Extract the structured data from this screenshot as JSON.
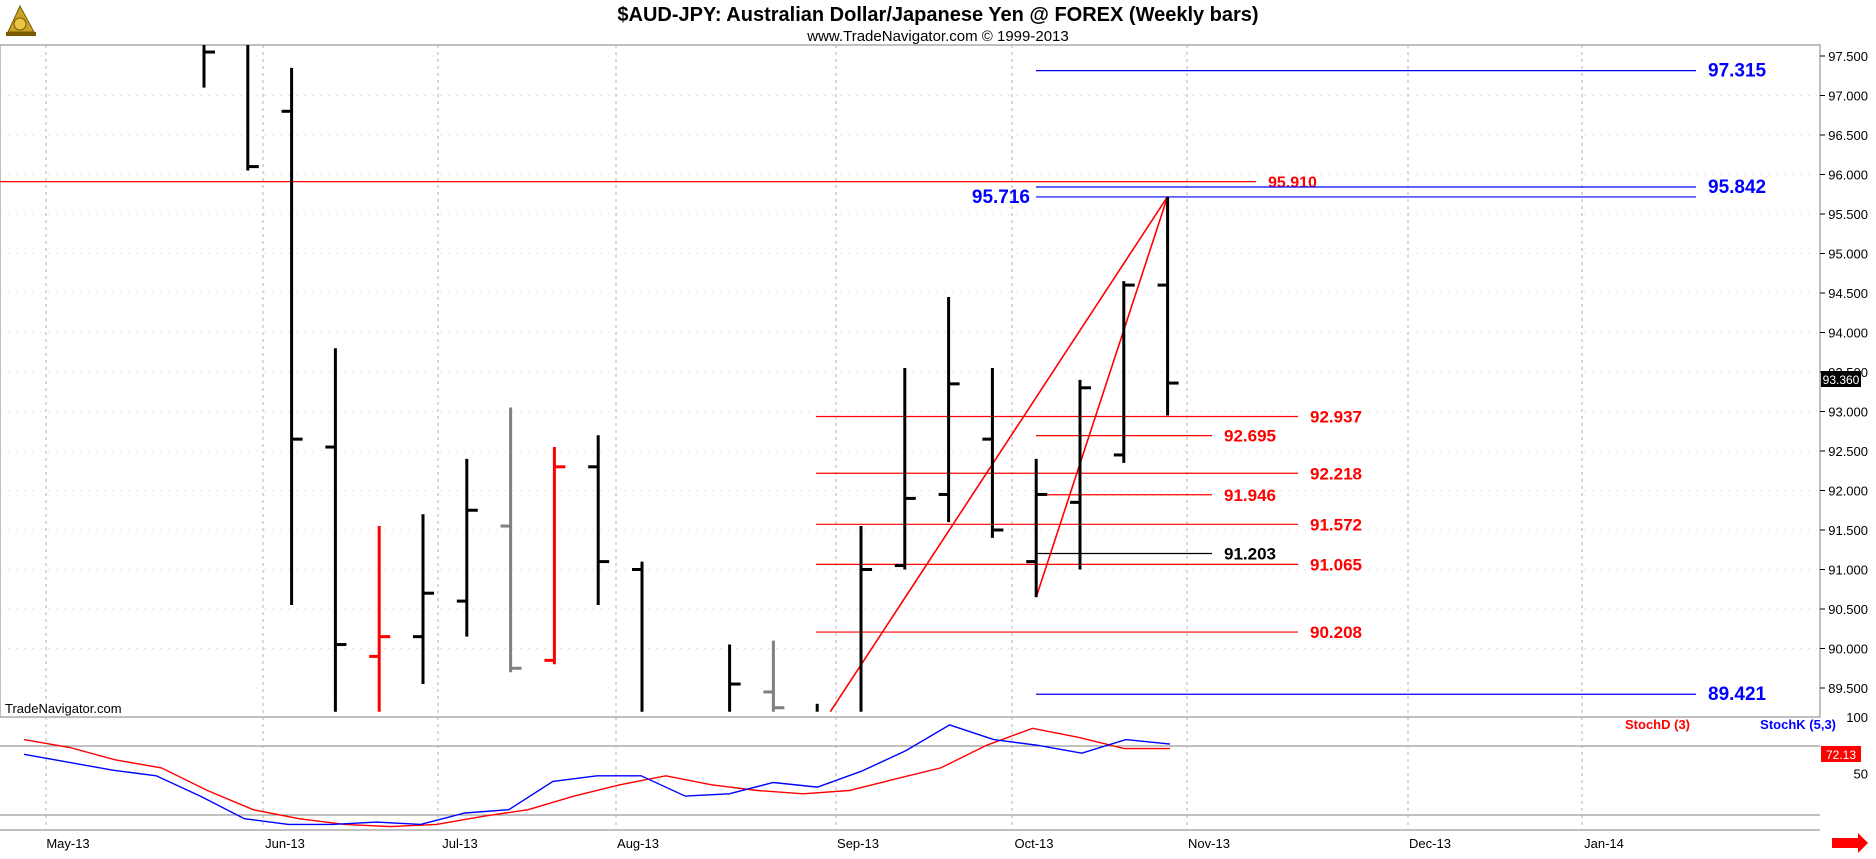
{
  "header": {
    "title": "$AUD-JPY:  Australian Dollar/Japanese Yen @ FOREX  (Weekly bars)",
    "subtitle": "www.TradeNavigator.com © 1999-2013",
    "watermark": "TradeNavigator.com",
    "logo_icon": "trade-navigator-logo-icon"
  },
  "colors": {
    "bar": "#000000",
    "bar_up_red": "#ff0000",
    "bar_gray": "#808080",
    "level_red": "#ff0000",
    "level_blue": "#0000ff",
    "level_black": "#000000",
    "stoch_d": "#ff0000",
    "stoch_k": "#0000ff",
    "grid": "#b0b0b0",
    "axis_label_bg": "#000000"
  },
  "chart_data": [
    {
      "type": "ohlc",
      "title": "$AUD-JPY:  Australian Dollar/Japanese Yen @ FOREX  (Weekly bars)",
      "ylim": [
        89.2,
        97.7
      ],
      "y_ticks": [
        "89.500",
        "90.000",
        "90.500",
        "91.000",
        "91.500",
        "92.000",
        "92.500",
        "93.000",
        "93.500",
        "94.000",
        "94.500",
        "95.000",
        "95.500",
        "96.000",
        "96.500",
        "97.000",
        "97.500"
      ],
      "x_ticks": [
        "May-13",
        "Jun-13",
        "Jul-13",
        "Aug-13",
        "Sep-13",
        "Oct-13",
        "Nov-13",
        "Dec-13",
        "Jan-14"
      ],
      "last_price_label": "93.360",
      "bars": [
        {
          "i": 0,
          "o": null,
          "h": 97.8,
          "l": 97.1,
          "c": 97.55,
          "color": "black"
        },
        {
          "i": 1,
          "o": null,
          "h": 97.8,
          "l": 96.05,
          "c": 96.1,
          "color": "black"
        },
        {
          "i": 2,
          "o": 96.8,
          "h": 97.35,
          "l": 90.55,
          "c": 92.65,
          "color": "black"
        },
        {
          "i": 3,
          "o": 92.55,
          "h": 93.8,
          "l": 89.2,
          "c": 90.05,
          "color": "black"
        },
        {
          "i": 4,
          "o": 89.9,
          "h": 91.55,
          "l": 89.2,
          "c": 90.15,
          "color": "red"
        },
        {
          "i": 5,
          "o": 90.15,
          "h": 91.7,
          "l": 89.55,
          "c": 90.7,
          "color": "black"
        },
        {
          "i": 6,
          "o": 90.6,
          "h": 92.4,
          "l": 90.15,
          "c": 91.75,
          "color": "black"
        },
        {
          "i": 7,
          "o": 91.55,
          "h": 93.05,
          "l": 89.7,
          "c": 89.75,
          "color": "gray"
        },
        {
          "i": 8,
          "o": 89.85,
          "h": 92.55,
          "l": 89.8,
          "c": 92.3,
          "color": "red"
        },
        {
          "i": 9,
          "o": 92.3,
          "h": 92.7,
          "l": 90.55,
          "c": 91.1,
          "color": "black"
        },
        {
          "i": 10,
          "o": 91.0,
          "h": 91.1,
          "l": 89.2,
          "c": null,
          "color": "black"
        },
        {
          "i": 12,
          "o": null,
          "h": 90.05,
          "l": 89.2,
          "c": 89.55,
          "color": "black"
        },
        {
          "i": 13,
          "o": 89.45,
          "h": 90.1,
          "l": 89.2,
          "c": 89.25,
          "color": "gray"
        },
        {
          "i": 14,
          "o": null,
          "h": 89.3,
          "l": 89.2,
          "c": null,
          "color": "black"
        },
        {
          "i": 15,
          "o": null,
          "h": 91.55,
          "l": 89.2,
          "c": 91.0,
          "color": "black"
        },
        {
          "i": 16,
          "o": 91.05,
          "h": 93.55,
          "l": 91.0,
          "c": 91.9,
          "color": "black"
        },
        {
          "i": 17,
          "o": 91.95,
          "h": 94.45,
          "l": 91.6,
          "c": 93.35,
          "color": "black"
        },
        {
          "i": 18,
          "o": 92.65,
          "h": 93.55,
          "l": 91.4,
          "c": 91.5,
          "color": "black"
        },
        {
          "i": 19,
          "o": 91.1,
          "h": 92.4,
          "l": 90.65,
          "c": 91.95,
          "color": "black"
        },
        {
          "i": 20,
          "o": 91.85,
          "h": 93.4,
          "l": 91.0,
          "c": 93.3,
          "color": "black"
        },
        {
          "i": 21,
          "o": 92.45,
          "h": 94.65,
          "l": 92.35,
          "c": 94.6,
          "color": "black"
        },
        {
          "i": 22,
          "o": 94.6,
          "h": 95.72,
          "l": 92.95,
          "c": 93.36,
          "color": "black"
        }
      ],
      "levels": [
        {
          "value": 95.91,
          "label": "95.910",
          "color": "red",
          "span": "full"
        },
        {
          "value": 97.315,
          "label": "97.315",
          "color": "blue",
          "span": "right"
        },
        {
          "value": 95.842,
          "label": "95.842",
          "color": "blue",
          "span": "right"
        },
        {
          "value": 95.716,
          "label": "95.716",
          "color": "blue",
          "span": "right",
          "label_side": "left"
        },
        {
          "value": 89.421,
          "label": "89.421",
          "color": "blue",
          "span": "right"
        },
        {
          "value": 92.937,
          "label": "92.937",
          "color": "red",
          "span": "mid"
        },
        {
          "value": 92.695,
          "label": "92.695",
          "color": "red",
          "span": "short"
        },
        {
          "value": 92.218,
          "label": "92.218",
          "color": "red",
          "span": "mid"
        },
        {
          "value": 91.946,
          "label": "91.946",
          "color": "red",
          "span": "short"
        },
        {
          "value": 91.572,
          "label": "91.572",
          "color": "red",
          "span": "mid"
        },
        {
          "value": 91.203,
          "label": "91.203",
          "color": "black",
          "span": "short"
        },
        {
          "value": 91.065,
          "label": "91.065",
          "color": "red",
          "span": "mid"
        },
        {
          "value": 90.208,
          "label": "90.208",
          "color": "red",
          "span": "mid"
        }
      ],
      "trendlines": [
        {
          "from": {
            "i": 14.3,
            "v": 89.2
          },
          "to": {
            "i": 22,
            "v": 95.72
          }
        },
        {
          "from": {
            "i": 19,
            "v": 90.65
          },
          "to": {
            "i": 22,
            "v": 95.72
          }
        }
      ]
    },
    {
      "type": "line",
      "title": "",
      "ylim": [
        0,
        100
      ],
      "y_ticks": [
        "50",
        "100"
      ],
      "last_value_label": "72.13",
      "series": [
        {
          "name": "StochD (3)",
          "color": "red",
          "values": [
            80,
            73,
            62,
            55,
            35,
            18,
            10,
            5,
            3,
            5,
            12,
            18,
            30,
            40,
            48,
            40,
            35,
            32,
            35,
            45,
            55,
            75,
            90,
            82,
            72,
            72
          ]
        },
        {
          "name": "StochK (5,3)",
          "color": "blue",
          "values": [
            67,
            60,
            53,
            48,
            30,
            10,
            5,
            5,
            7,
            5,
            15,
            18,
            43,
            48,
            48,
            30,
            32,
            42,
            38,
            52,
            70,
            93,
            80,
            75,
            68,
            80,
            76
          ]
        }
      ]
    }
  ]
}
